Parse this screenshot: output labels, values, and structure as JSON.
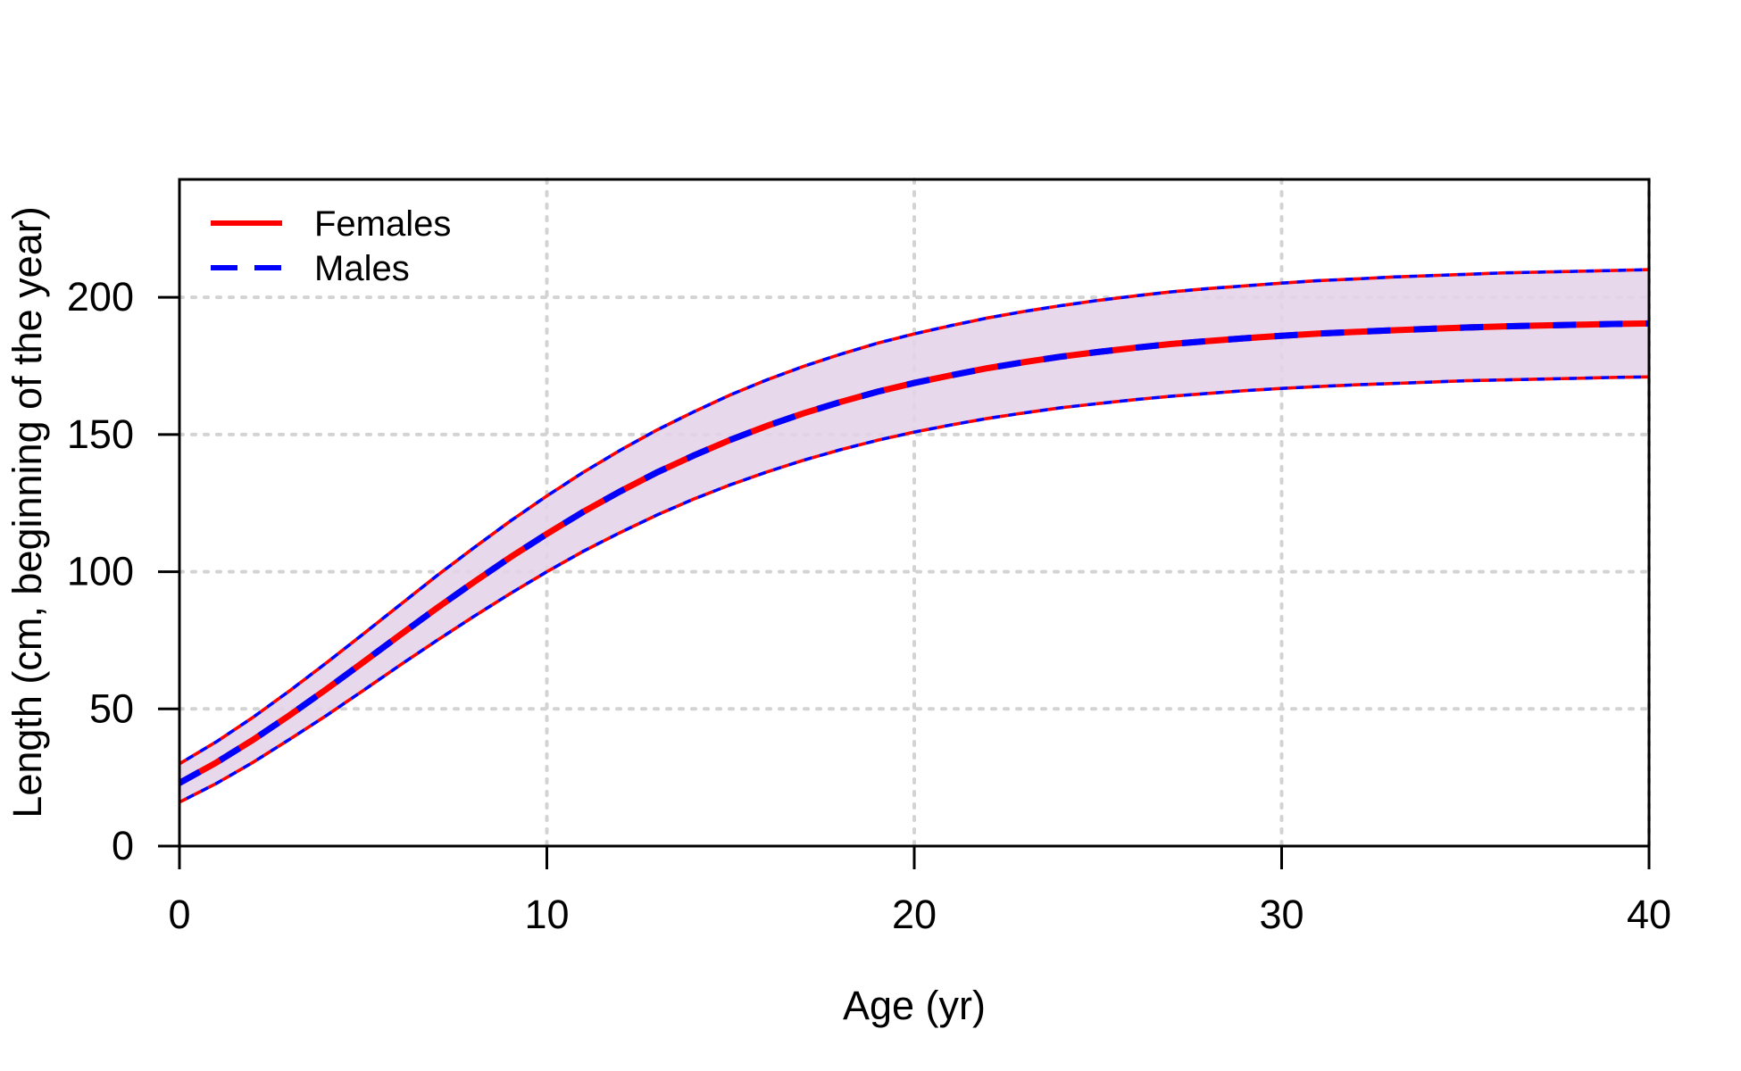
{
  "chart_data": {
    "type": "line",
    "title": "",
    "xlabel": "Age (yr)",
    "ylabel": "Length (cm, beginning of the year)",
    "xlim": [
      0,
      40
    ],
    "ylim": [
      0,
      243
    ],
    "xticks": [
      "0",
      "10",
      "20",
      "30",
      "40"
    ],
    "yticks": [
      "0",
      "50",
      "100",
      "150",
      "200"
    ],
    "xtick_values": [
      0,
      10,
      20,
      30,
      40
    ],
    "ytick_values": [
      0,
      50,
      100,
      150,
      200
    ],
    "grid": {
      "style": "dotted",
      "color": "#D3D3D3",
      "at_x": [
        10,
        20,
        30,
        40
      ],
      "at_y": [
        50,
        100,
        150,
        200
      ]
    },
    "x": [
      0,
      1,
      2,
      3,
      4,
      5,
      6,
      7,
      8,
      9,
      10,
      11,
      12,
      13,
      14,
      15,
      16,
      17,
      18,
      19,
      20,
      21,
      22,
      23,
      24,
      25,
      26,
      27,
      28,
      29,
      30,
      31,
      32,
      33,
      34,
      35,
      36,
      37,
      38,
      39,
      40
    ],
    "series": [
      {
        "name": "Females",
        "color": "#FF0000",
        "line_style": "solid",
        "values": [
          23.0,
          30.4,
          38.7,
          47.7,
          57.2,
          67.0,
          76.9,
          86.7,
          96.1,
          105.2,
          113.8,
          121.9,
          129.3,
          136.2,
          142.4,
          148.1,
          153.2,
          157.8,
          161.9,
          165.6,
          168.8,
          171.6,
          174.2,
          176.4,
          178.4,
          180.1,
          181.6,
          183.0,
          184.1,
          185.1,
          186.0,
          186.8,
          187.4,
          188.0,
          188.5,
          189.0,
          189.4,
          189.7,
          190.0,
          190.3,
          190.5
        ]
      },
      {
        "name": "Males",
        "color": "#0000FF",
        "line_style": "dashed",
        "values": [
          23.0,
          30.4,
          38.7,
          47.7,
          57.2,
          67.0,
          76.9,
          86.7,
          96.1,
          105.2,
          113.8,
          121.9,
          129.3,
          136.2,
          142.4,
          148.1,
          153.2,
          157.8,
          161.9,
          165.6,
          168.8,
          171.6,
          174.2,
          176.4,
          178.4,
          180.1,
          181.6,
          183.0,
          184.1,
          185.1,
          186.0,
          186.8,
          187.4,
          188.0,
          188.5,
          189.0,
          189.4,
          189.7,
          190.0,
          190.3,
          190.5
        ]
      }
    ],
    "ci_band": {
      "fill": "#E4D4E8",
      "edge_style": "alternating red/blue dotted",
      "lower": [
        16.0,
        22.8,
        30.5,
        38.9,
        47.6,
        56.7,
        65.9,
        74.9,
        83.6,
        92.0,
        100.0,
        107.5,
        114.3,
        120.7,
        126.5,
        131.7,
        136.4,
        140.7,
        144.5,
        147.9,
        150.9,
        153.5,
        155.9,
        157.9,
        159.8,
        161.3,
        162.7,
        164.0,
        165.0,
        166.0,
        166.8,
        167.5,
        168.1,
        168.6,
        169.1,
        169.6,
        169.9,
        170.2,
        170.5,
        170.8,
        171.0
      ],
      "upper": [
        30.0,
        38.0,
        46.9,
        56.6,
        66.8,
        77.3,
        87.9,
        98.5,
        108.6,
        118.4,
        127.6,
        136.3,
        144.3,
        151.7,
        158.3,
        164.5,
        170.0,
        174.9,
        179.3,
        183.3,
        186.7,
        189.7,
        192.5,
        194.9,
        197.0,
        198.9,
        200.5,
        202.0,
        203.2,
        204.2,
        205.2,
        206.1,
        206.7,
        207.4,
        207.9,
        208.4,
        208.9,
        209.2,
        209.5,
        209.8,
        210.1
      ]
    },
    "legend": {
      "position": "top-left",
      "entries": [
        "Females",
        "Males"
      ]
    },
    "axis_color": "#000000",
    "background": "#FFFFFF"
  }
}
